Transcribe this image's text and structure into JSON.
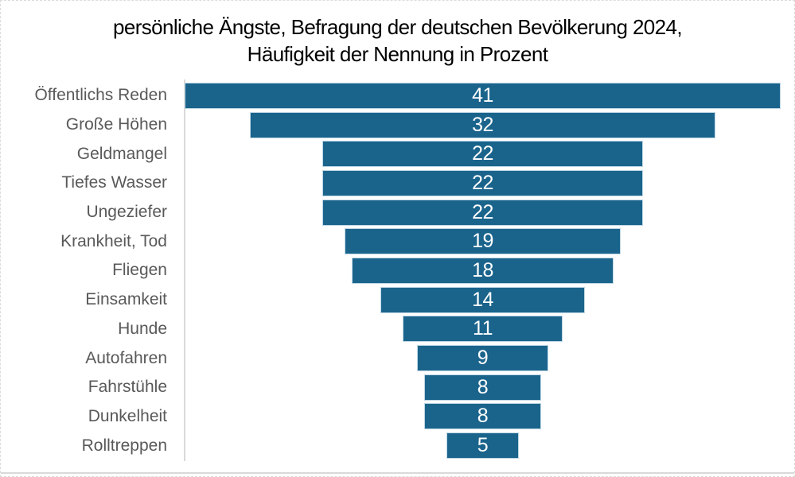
{
  "chart_data": {
    "type": "bar",
    "variant": "horizontal-centered-funnel",
    "title": "persönliche Ängste, Befragung der deutschen Bevölkerung 2024, Häufigkeit der Nennung in Prozent",
    "title_line1": "persönliche Ängste, Befragung der deutschen Bevölkerung 2024,",
    "title_line2": "Häufigkeit der Nennung in Prozent",
    "categories": [
      "Öffentlichs Reden",
      "Große Höhen",
      "Geldmangel",
      "Tiefes Wasser",
      "Ungeziefer",
      "Krankheit, Tod",
      "Fliegen",
      "Einsamkeit",
      "Hunde",
      "Autofahren",
      "Fahrstühle",
      "Dunkelheit",
      "Rolltreppen"
    ],
    "values": [
      41,
      32,
      22,
      22,
      22,
      19,
      18,
      14,
      11,
      9,
      8,
      8,
      5
    ],
    "unit": "Prozent",
    "xlim": [
      0,
      41
    ],
    "legend": "none",
    "grid": "off",
    "colors": {
      "bar": "#1a648c",
      "bar_border": "#bed6e3",
      "value_label": "#ffffff",
      "category_label": "#595959",
      "title": "#000000",
      "axis_line": "#d9d9d9",
      "baseline": "#d9d9d9",
      "frame_border": "#dcdcdc"
    }
  }
}
